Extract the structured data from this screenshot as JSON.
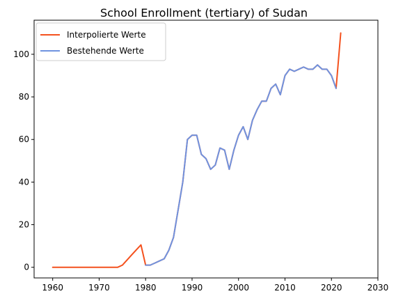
{
  "chart_data": {
    "type": "line",
    "title": "School Enrollment (tertiary) of Sudan",
    "xlabel": "",
    "ylabel": "",
    "xlim": [
      1956,
      2030
    ],
    "ylim": [
      -5,
      116
    ],
    "xticks": [
      1960,
      1970,
      1980,
      1990,
      2000,
      2010,
      2020,
      2030
    ],
    "yticks": [
      0,
      20,
      40,
      60,
      80,
      100
    ],
    "grid": false,
    "legend": "top-left",
    "series": [
      {
        "name": "Interpolierte Werte",
        "color": "#f4511e",
        "x": [
          1960,
          1974,
          1975,
          1976,
          1977,
          1978,
          1979,
          1980,
          1981,
          1982,
          1983,
          1984,
          1985,
          1986,
          1987,
          1988,
          1989,
          1990,
          1991,
          1992,
          1993,
          1994,
          1995,
          1996,
          1997,
          1998,
          1999,
          2000,
          2001,
          2002,
          2003,
          2004,
          2005,
          2006,
          2007,
          2008,
          2009,
          2010,
          2011,
          2012,
          2013,
          2014,
          2015,
          2016,
          2017,
          2018,
          2019,
          2020,
          2021,
          2022
        ],
        "y": [
          0,
          0,
          1,
          3.4,
          5.8,
          8.2,
          10.5,
          1,
          1,
          2,
          3,
          4,
          8,
          14,
          27,
          40,
          60,
          62,
          62,
          53,
          51,
          46,
          48,
          56,
          55,
          46,
          55,
          62,
          66,
          60,
          69,
          74,
          78,
          78,
          84,
          86,
          81,
          90,
          93,
          92,
          93,
          94,
          93,
          93,
          95,
          93,
          93,
          90,
          84,
          110
        ]
      },
      {
        "name": "Bestehende Werte",
        "color": "#6f93e0",
        "x": [
          1980,
          1981,
          1982,
          1983,
          1984,
          1985,
          1986,
          1987,
          1988,
          1989,
          1990,
          1991,
          1992,
          1993,
          1994,
          1995,
          1996,
          1997,
          1998,
          1999,
          2000,
          2001,
          2002,
          2003,
          2004,
          2005,
          2006,
          2007,
          2008,
          2009,
          2010,
          2011,
          2012,
          2013,
          2014,
          2015,
          2016,
          2017,
          2018,
          2019,
          2020,
          2021
        ],
        "y": [
          1,
          1,
          2,
          3,
          4,
          8,
          14,
          27,
          40,
          60,
          62,
          62,
          53,
          51,
          46,
          48,
          56,
          55,
          46,
          55,
          62,
          66,
          60,
          69,
          74,
          78,
          78,
          84,
          86,
          81,
          90,
          93,
          92,
          93,
          94,
          93,
          93,
          95,
          93,
          93,
          90,
          84
        ]
      }
    ]
  }
}
